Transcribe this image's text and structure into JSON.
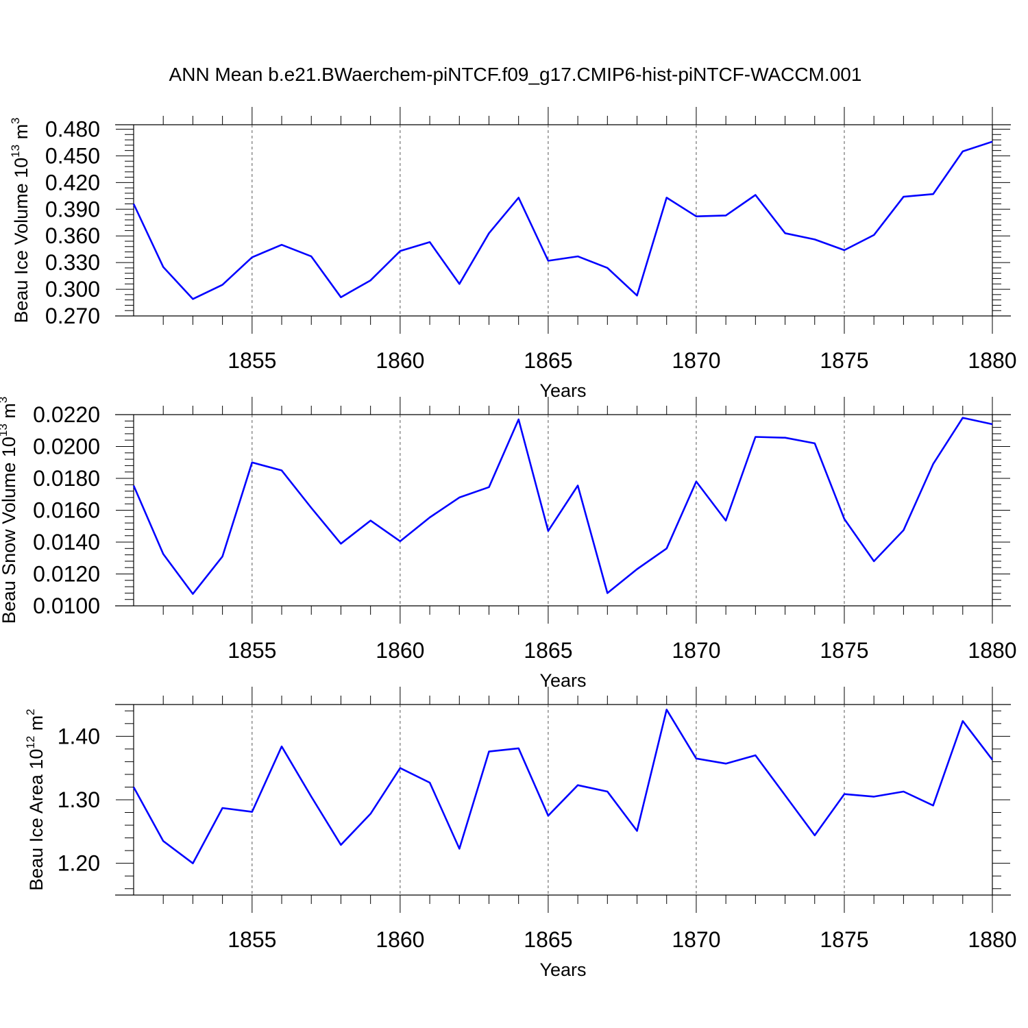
{
  "figure_title": "ANN Mean b.e21.BWaerchem-piNTCF.f09_g17.CMIP6-hist-piNTCF-WACCM.001",
  "colors": {
    "line": "#0000ff",
    "axis": "#000000",
    "grid": "#555555",
    "background": "#ffffff"
  },
  "chart_data": [
    {
      "type": "line",
      "title": "",
      "xlabel": "Years",
      "ylabel_text": "Beau Ice Volume 10",
      "ylabel_exp": "13",
      "ylabel_unit": "m",
      "ylabel_unit_exp": "3",
      "xlim": [
        1851,
        1880
      ],
      "ylim": [
        0.27,
        0.485
      ],
      "x_ticks": [
        "1855",
        "1860",
        "1865",
        "1870",
        "1875",
        "1880"
      ],
      "y_ticks": [
        "0.270",
        "0.300",
        "0.330",
        "0.360",
        "0.390",
        "0.420",
        "0.450",
        "0.480"
      ],
      "grid": "vertical dashed at major x ticks",
      "series": [
        {
          "name": "Beau Ice Volume",
          "x": [
            1851,
            1852,
            1853,
            1854,
            1855,
            1856,
            1857,
            1858,
            1859,
            1860,
            1861,
            1862,
            1863,
            1864,
            1865,
            1866,
            1867,
            1868,
            1869,
            1870,
            1871,
            1872,
            1873,
            1874,
            1875,
            1876,
            1877,
            1878,
            1879,
            1880
          ],
          "values": [
            0.396,
            0.325,
            0.289,
            0.305,
            0.336,
            0.35,
            0.337,
            0.291,
            0.31,
            0.343,
            0.353,
            0.306,
            0.363,
            0.403,
            0.332,
            0.337,
            0.324,
            0.293,
            0.403,
            0.382,
            0.383,
            0.406,
            0.363,
            0.356,
            0.344,
            0.361,
            0.404,
            0.407,
            0.455,
            0.466
          ]
        }
      ]
    },
    {
      "type": "line",
      "title": "",
      "xlabel": "Years",
      "ylabel_text": "Beau Snow Volume 10",
      "ylabel_exp": "13",
      "ylabel_unit": "m",
      "ylabel_unit_exp": "3",
      "xlim": [
        1851,
        1880
      ],
      "ylim": [
        0.01,
        0.022
      ],
      "x_ticks": [
        "1855",
        "1860",
        "1865",
        "1870",
        "1875",
        "1880"
      ],
      "y_ticks": [
        "0.0100",
        "0.0120",
        "0.0140",
        "0.0160",
        "0.0180",
        "0.0200",
        "0.0220"
      ],
      "grid": "vertical dashed at major x ticks",
      "series": [
        {
          "name": "Beau Snow Volume",
          "x": [
            1851,
            1852,
            1853,
            1854,
            1855,
            1856,
            1857,
            1858,
            1859,
            1860,
            1861,
            1862,
            1863,
            1864,
            1865,
            1866,
            1867,
            1868,
            1869,
            1870,
            1871,
            1872,
            1873,
            1874,
            1875,
            1876,
            1877,
            1878,
            1879,
            1880
          ],
          "values": [
            0.01755,
            0.01325,
            0.01075,
            0.0131,
            0.019,
            0.0185,
            0.01615,
            0.0139,
            0.01535,
            0.01405,
            0.01555,
            0.0168,
            0.01745,
            0.0217,
            0.0147,
            0.01755,
            0.0108,
            0.0123,
            0.0136,
            0.0178,
            0.01535,
            0.0206,
            0.02055,
            0.0202,
            0.01545,
            0.0128,
            0.01475,
            0.0189,
            0.0218,
            0.0214
          ]
        }
      ]
    },
    {
      "type": "line",
      "title": "",
      "xlabel": "Years",
      "ylabel_text": "Beau Ice Area 10",
      "ylabel_exp": "12",
      "ylabel_unit": "m",
      "ylabel_unit_exp": "2",
      "xlim": [
        1851,
        1880
      ],
      "ylim": [
        1.15,
        1.45
      ],
      "x_ticks": [
        "1855",
        "1860",
        "1865",
        "1870",
        "1875",
        "1880"
      ],
      "y_ticks": [
        "1.20",
        "1.30",
        "1.40"
      ],
      "grid": "vertical dashed at major x ticks",
      "series": [
        {
          "name": "Beau Ice Area",
          "x": [
            1851,
            1852,
            1853,
            1854,
            1855,
            1856,
            1857,
            1858,
            1859,
            1860,
            1861,
            1862,
            1863,
            1864,
            1865,
            1866,
            1867,
            1868,
            1869,
            1870,
            1871,
            1872,
            1873,
            1874,
            1875,
            1876,
            1877,
            1878,
            1879,
            1880
          ],
          "values": [
            1.32,
            1.235,
            1.2,
            1.287,
            1.281,
            1.384,
            1.305,
            1.229,
            1.278,
            1.35,
            1.327,
            1.223,
            1.376,
            1.381,
            1.275,
            1.323,
            1.313,
            1.251,
            1.442,
            1.365,
            1.357,
            1.37,
            1.307,
            1.244,
            1.309,
            1.305,
            1.313,
            1.291,
            1.424,
            1.363
          ]
        }
      ]
    }
  ]
}
